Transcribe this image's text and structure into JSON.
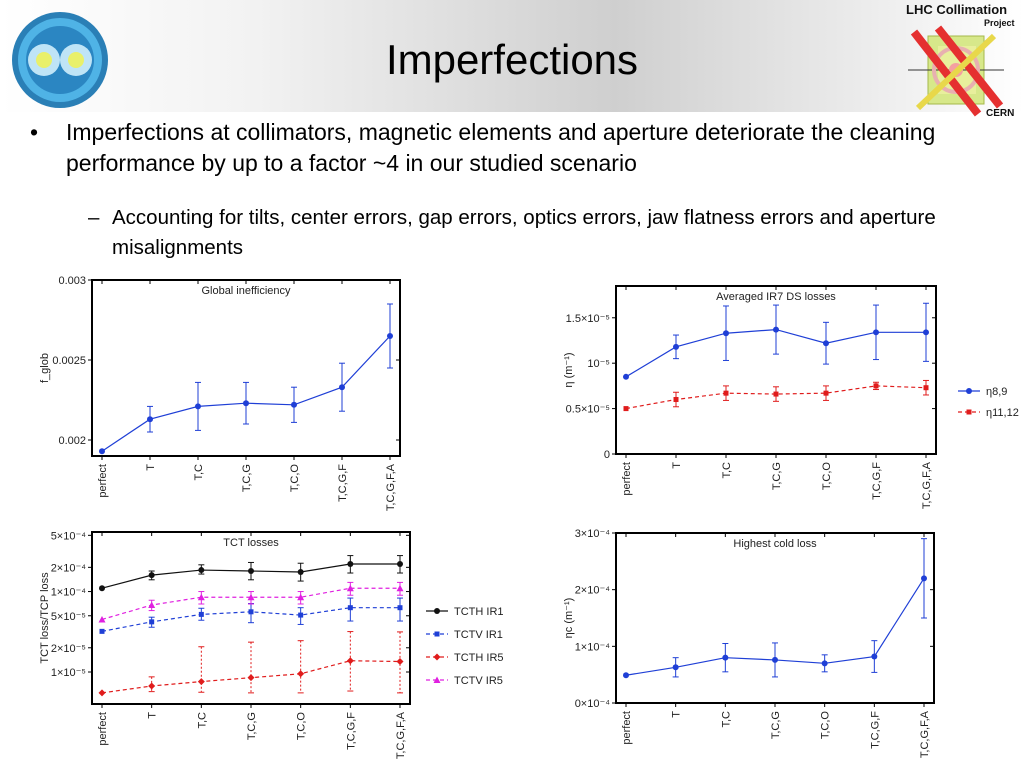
{
  "slide": {
    "title": "Imperfections",
    "bullet1": "Imperfections at collimators, magnetic elements and aperture deteriorate the cleaning performance by up to a factor ~4 in our studied scenario",
    "bullet2": "Accounting for tilts, center errors, gap errors, optics errors, jaw flatness errors and aperture misalignments",
    "bullet_marker": "•",
    "sub_marker": "–",
    "logo": {
      "line1": "LHC Collimation",
      "line2": "Project",
      "line3": "CERN"
    }
  },
  "chart_data": [
    {
      "type": "line",
      "title": "Global inefficiency",
      "ylabel": "f_glob",
      "categories": [
        "perfect",
        "T",
        "T,C",
        "T,C,G",
        "T,C,O",
        "T,C,G,F",
        "T,C,G,F,A"
      ],
      "ylim": [
        0.0019,
        0.003
      ],
      "yticks": [
        "0.002",
        "0.0025",
        "0.003"
      ],
      "ytick_values": [
        0.002,
        0.0025,
        0.003
      ],
      "series": [
        {
          "color": "#1f3fd6",
          "values": [
            0.00193,
            0.00213,
            0.00221,
            0.00223,
            0.00222,
            0.00233,
            0.00265
          ],
          "err": [
            0,
            8e-05,
            0.00015,
            0.00013,
            0.00011,
            0.00015,
            0.0002
          ]
        }
      ]
    },
    {
      "type": "line",
      "title": "Averaged IR7 DS losses",
      "ylabel": "η (m⁻¹)",
      "categories": [
        "perfect",
        "T",
        "T,C",
        "T,C,G",
        "T,C,O",
        "T,C,G,F",
        "T,C,G,F,A"
      ],
      "ylim": [
        0,
        1.85e-05
      ],
      "yticks": [
        "0",
        "0.5×10⁻⁵",
        "10⁻⁵",
        "1.5×10⁻⁵"
      ],
      "ytick_values": [
        0,
        5e-06,
        1e-05,
        1.5e-05
      ],
      "legend": [
        "η8,9",
        "η11,12"
      ],
      "legend_position": "right",
      "series": [
        {
          "name": "η8,9",
          "color": "#1f3fd6",
          "dash": false,
          "marker": "circle",
          "values": [
            8.5e-06,
            1.18e-05,
            1.33e-05,
            1.37e-05,
            1.22e-05,
            1.34e-05,
            1.34e-05
          ],
          "err": [
            0,
            1.3e-06,
            3e-06,
            2.7e-06,
            2.3e-06,
            3e-06,
            3.2e-06
          ]
        },
        {
          "name": "η11,12",
          "color": "#e01c1c",
          "dash": true,
          "marker": "square",
          "values": [
            5e-06,
            6e-06,
            6.7e-06,
            6.6e-06,
            6.7e-06,
            7.5e-06,
            7.3e-06
          ],
          "err": [
            0,
            8e-07,
            8e-07,
            8e-07,
            8e-07,
            4e-07,
            8e-07
          ]
        }
      ]
    },
    {
      "type": "line",
      "title": "TCT losses",
      "ylabel": "TCT loss/TCP loss",
      "scale": "log",
      "categories": [
        "perfect",
        "T",
        "T,C",
        "T,C,G",
        "T,C,O",
        "T,C,G,F",
        "T,C,G,F,A"
      ],
      "ylim": [
        4e-06,
        0.00055
      ],
      "yticks": [
        "5×10⁻⁴",
        "2×10⁻⁴",
        "1×10⁻⁴",
        "5×10⁻⁵",
        "2×10⁻⁵",
        "1×10⁻⁵"
      ],
      "ytick_values": [
        0.0005,
        0.0002,
        0.0001,
        5e-05,
        2e-05,
        1e-05
      ],
      "legend": [
        "TCTH IR1",
        "TCTV IR1",
        "TCTH IR5",
        "TCTV IR5"
      ],
      "legend_position": "right",
      "series": [
        {
          "name": "TCTH IR1",
          "color": "#111111",
          "dash": false,
          "marker": "circle",
          "values": [
            0.00011,
            0.00016,
            0.000185,
            0.00018,
            0.000175,
            0.00022,
            0.00022
          ],
          "errlo": [
            0,
            2e-05,
            2e-05,
            4e-05,
            4e-05,
            5e-05,
            5e-05
          ],
          "errhi": [
            0,
            2e-05,
            3e-05,
            5e-05,
            5e-05,
            6e-05,
            6e-05
          ]
        },
        {
          "name": "TCTV IR1",
          "color": "#1f3fd6",
          "dash": true,
          "marker": "square",
          "values": [
            3.2e-05,
            4.2e-05,
            5.2e-05,
            5.6e-05,
            5.1e-05,
            6.3e-05,
            6.3e-05
          ],
          "errlo": [
            0,
            6e-06,
            8e-06,
            1.5e-05,
            1.2e-05,
            2e-05,
            2e-05
          ],
          "errhi": [
            0,
            6e-06,
            1e-05,
            1.5e-05,
            1.2e-05,
            2e-05,
            2e-05
          ]
        },
        {
          "name": "TCTH IR5",
          "color": "#e01c1c",
          "dash": true,
          "marker": "diamond",
          "values": [
            5.5e-06,
            6.7e-06,
            7.6e-06,
            8.5e-06,
            9.5e-06,
            1.38e-05,
            1.35e-05
          ],
          "errlo": [
            0,
            1e-06,
            2e-06,
            3e-06,
            4e-06,
            8e-06,
            8e-06
          ],
          "errhi": [
            0,
            2e-06,
            1.3e-05,
            1.5e-05,
            1.5e-05,
            1.8e-05,
            1.8e-05
          ]
        },
        {
          "name": "TCTV IR5",
          "color": "#e020e0",
          "dash": true,
          "marker": "triangle",
          "values": [
            4.5e-05,
            6.8e-05,
            8.5e-05,
            8.5e-05,
            8.5e-05,
            0.00011,
            0.00011
          ],
          "errlo": [
            0,
            1e-05,
            1.5e-05,
            1.5e-05,
            1.5e-05,
            2e-05,
            2e-05
          ],
          "errhi": [
            0,
            1e-05,
            1.5e-05,
            1.5e-05,
            1.5e-05,
            2e-05,
            2e-05
          ]
        }
      ]
    },
    {
      "type": "line",
      "title": "Highest cold loss",
      "ylabel": "ηc (m⁻¹)",
      "categories": [
        "perfect",
        "T",
        "T,C",
        "T,C,G",
        "T,C,O",
        "T,C,G,F",
        "T,C,G,F,A"
      ],
      "ylim": [
        0,
        0.0003
      ],
      "yticks": [
        "0×10⁻⁴",
        "1×10⁻⁴",
        "2×10⁻⁴",
        "3×10⁻⁴"
      ],
      "ytick_values": [
        0,
        0.0001,
        0.0002,
        0.0003
      ],
      "series": [
        {
          "color": "#1f3fd6",
          "values": [
            4.9e-05,
            6.3e-05,
            8e-05,
            7.6e-05,
            7e-05,
            8.2e-05,
            0.00022
          ],
          "err": [
            0,
            1.7e-05,
            2.5e-05,
            3e-05,
            1.5e-05,
            2.8e-05,
            7e-05
          ]
        }
      ]
    }
  ]
}
